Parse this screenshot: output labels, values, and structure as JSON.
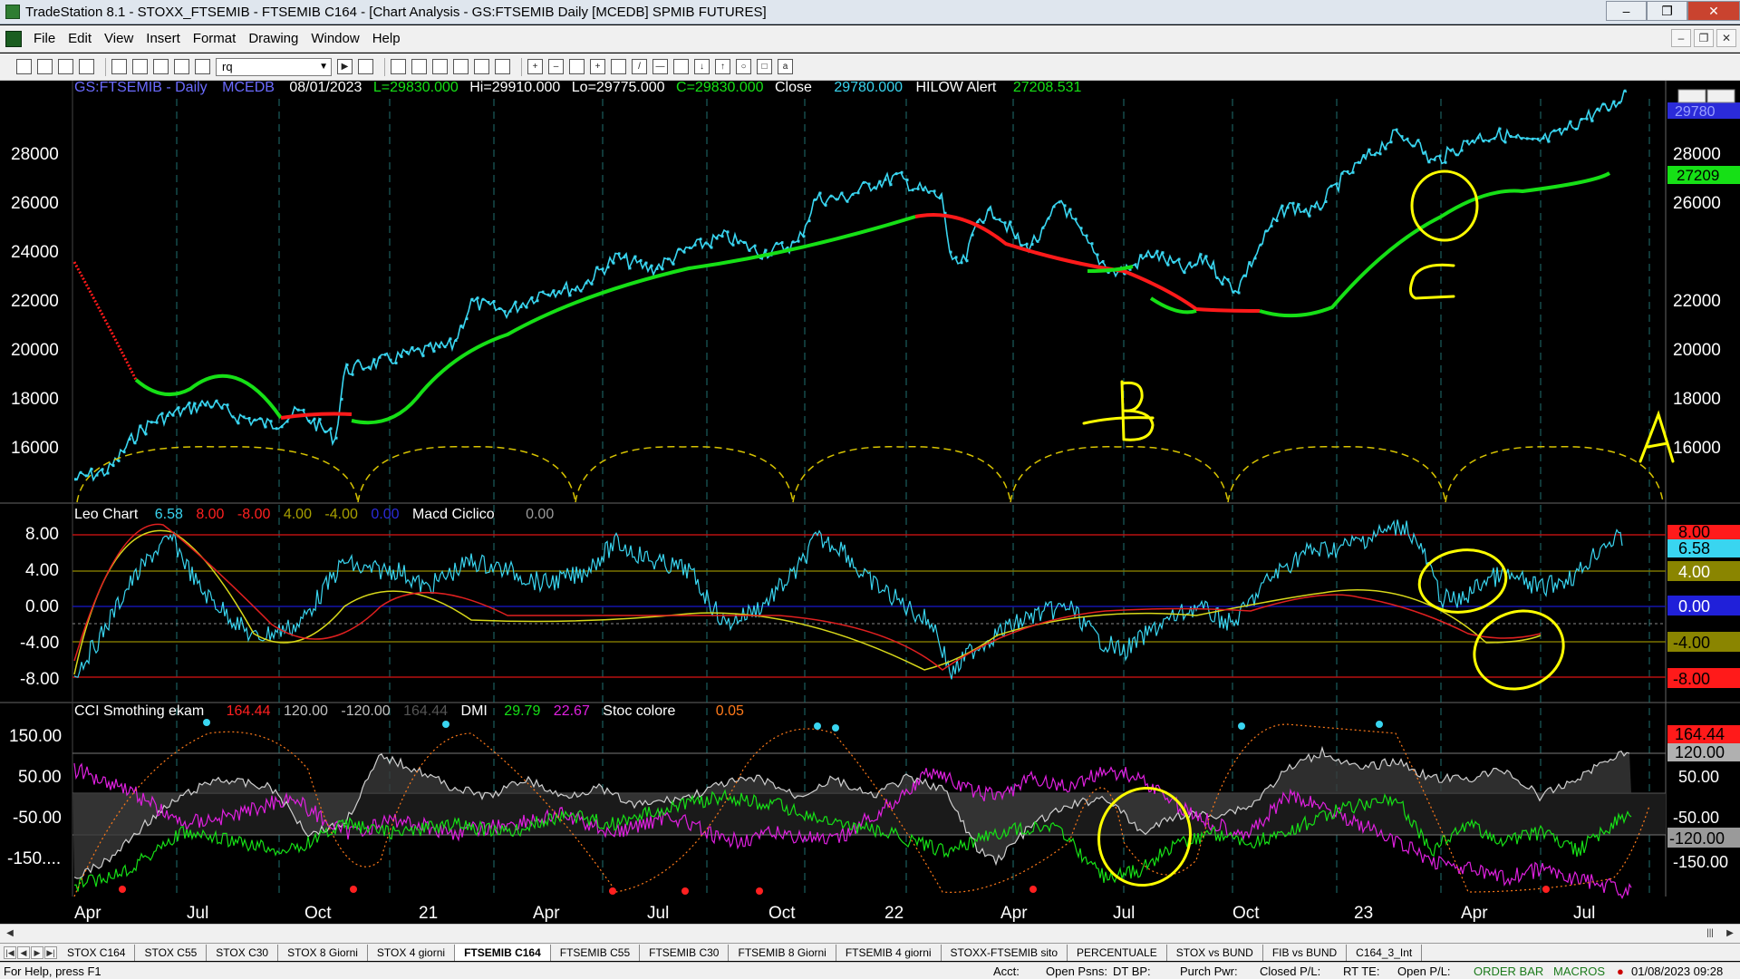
{
  "window": {
    "title": "TradeStation 8.1 - STOXX_FTSEMIB - FTSEMIB C164 - [Chart Analysis - GS:FTSEMIB  Daily  [MCEDB] SPMIB FUTURES]"
  },
  "menu": {
    "items": [
      "File",
      "Edit",
      "View",
      "Insert",
      "Format",
      "Drawing",
      "Window",
      "Help"
    ]
  },
  "toolbar": {
    "symbol_value": "rq"
  },
  "colors": {
    "price": "#39d5f0",
    "ma_up": "#16e016",
    "ma_down": "#ff1a1a",
    "cycle": "#d6c200",
    "marker": "#ffff00",
    "grid": "#1f6f6f"
  },
  "panel1": {
    "header": {
      "symbol": "GS:FTSEMIB - Daily",
      "dataset": "MCEDB",
      "date": "08/01/2023",
      "last": "L=29830.000",
      "high": "Hi=29910.000",
      "low": "Lo=29775.000",
      "close_eq": "C=29830.000",
      "close_label": "Close",
      "close_value": "29780.000",
      "indicator": "HILOW Alert",
      "indicator_value": "27208.531"
    },
    "axis_labels": [
      "28000",
      "26000",
      "24000",
      "22000",
      "20000",
      "18000",
      "16000"
    ],
    "right_labels": {
      "price": "29780",
      "ma": "27209"
    },
    "letters": {
      "a": "A",
      "b": "B",
      "c": "C"
    }
  },
  "panel2": {
    "header": {
      "name": "Leo Chart",
      "v1": "6.58",
      "v2": "8.00",
      "v3": "-8.00",
      "v4": "4.00",
      "v5": "-4.00",
      "v6": "0.00",
      "name2": "Macd Ciclico",
      "v7": "0.00"
    },
    "axis_labels": [
      "8.00",
      "4.00",
      "0.00",
      "-4.00",
      "-8.00"
    ],
    "right_labels": {
      "l1": "8.00",
      "l2": "6.58",
      "l3": "4.00",
      "l4": "0.00",
      "l5": "-4.00",
      "l6": "-8.00"
    }
  },
  "panel3": {
    "header": {
      "name": "CCI Smothing ekam",
      "v1": "164.44",
      "v2": "120.00",
      "v3": "-120.00",
      "v4": "164.44",
      "name2": "DMI",
      "v5": "29.79",
      "v6": "22.67",
      "name3": "Stoc colore",
      "v7": "0.05"
    },
    "axis_labels": [
      "150.00",
      "50.00",
      "-50.00",
      "-150...."
    ],
    "right_labels": {
      "l1": "164.44",
      "l2": "120.00",
      "l3": "50.00",
      "l4": "-50.00",
      "l5": "-120.00",
      "l6": "-150.00"
    }
  },
  "xaxis": {
    "labels": [
      "Apr",
      "Jul",
      "Oct",
      "21",
      "Apr",
      "Jul",
      "Oct",
      "22",
      "Apr",
      "Jul",
      "Oct",
      "23",
      "Apr",
      "Jul"
    ]
  },
  "tabs": [
    "STOX C164",
    "STOX C55",
    "STOX  C30",
    "STOX  8 Giorni",
    "STOX 4 giorni",
    "FTSEMIB C164",
    "FTSEMIB C55",
    "FTSEMIB C30",
    "FTSEMIB  8 Giorni",
    "FTSEMIB  4 giorni",
    "STOXX-FTSEMIB sito",
    "PERCENTUALE",
    "STOX vs BUND",
    "FIB vs BUND",
    "C164_3_Int"
  ],
  "status": {
    "help": "For Help, press F1",
    "acct": "Acct:",
    "open_psns": "Open Psns:",
    "dt_bp": "DT BP:",
    "purch_pwr": "Purch Pwr:",
    "closed_pl": "Closed P/L:",
    "rt_te": "RT TE:",
    "open_pl": "Open P/L:",
    "order_bar": "ORDER BAR",
    "macros": "MACROS",
    "datetime": "01/08/2023 09:28"
  }
}
